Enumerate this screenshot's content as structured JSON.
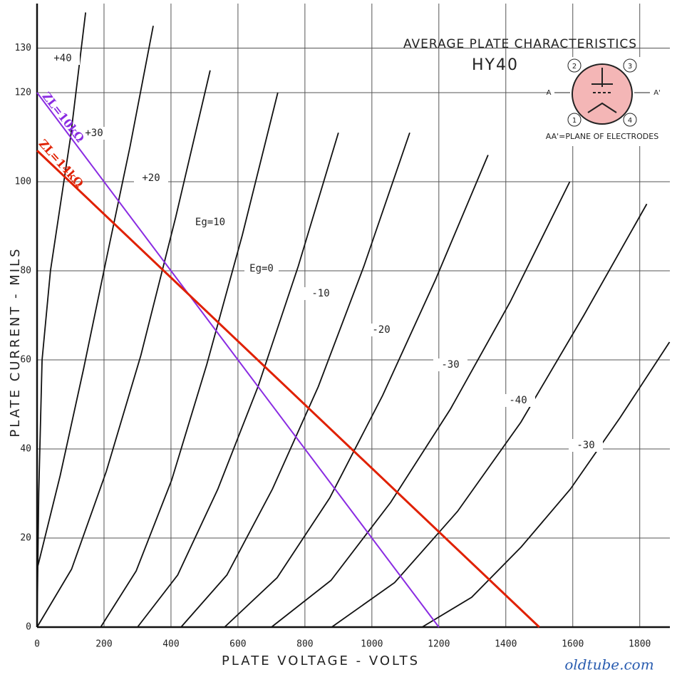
{
  "chart_data": {
    "type": "line",
    "title": "AVERAGE PLATE CHARACTERISTICS",
    "subtitle": "HY40",
    "x_label": "PLATE VOLTAGE - VOLTS",
    "y_label": "PLATE CURRENT - MILS",
    "watermark": "oldtube.com",
    "xlim": [
      0,
      1890
    ],
    "ylim": [
      0,
      140
    ],
    "xticks": [
      0,
      200,
      400,
      600,
      800,
      1000,
      1200,
      1400,
      1600,
      1800
    ],
    "yticks": [
      0,
      20,
      40,
      60,
      80,
      100,
      120,
      130
    ],
    "grid": true,
    "series": [
      {
        "name": "+40",
        "color": "#111111",
        "x": [
          0,
          5,
          15,
          40,
          70,
          100,
          145
        ],
        "values": [
          0,
          30,
          60,
          80,
          95,
          110,
          138
        ]
      },
      {
        "name": "+30",
        "color": "#111111",
        "x": [
          0,
          69,
          139,
          208,
          278,
          347
        ],
        "values": [
          13,
          34,
          58,
          83,
          108,
          135
        ]
      },
      {
        "name": "+20",
        "color": "#111111",
        "x": [
          0,
          103,
          207,
          310,
          414,
          517
        ],
        "values": [
          0,
          13,
          35,
          61,
          92,
          125
        ]
      },
      {
        "name": "Eg=10",
        "color": "#111111",
        "x": [
          190,
          296,
          402,
          507,
          613,
          719
        ],
        "values": [
          0,
          12.6,
          33,
          59,
          88,
          120
        ]
      },
      {
        "name": "Eg=0",
        "color": "#111111",
        "x": [
          300,
          420,
          540,
          660,
          780,
          900
        ],
        "values": [
          0,
          11.7,
          31,
          54,
          81,
          111
        ]
      },
      {
        "name": "-10",
        "color": "#111111",
        "x": [
          430,
          567,
          703,
          840,
          976,
          1113
        ],
        "values": [
          0,
          11.7,
          31,
          54,
          81,
          111
        ]
      },
      {
        "name": "-20",
        "color": "#111111",
        "x": [
          560,
          717,
          874,
          1032,
          1190,
          1347
        ],
        "values": [
          0,
          11.1,
          29,
          52,
          78,
          106
        ]
      },
      {
        "name": "-30",
        "color": "#111111",
        "x": [
          700,
          878,
          1056,
          1235,
          1413,
          1591
        ],
        "values": [
          0,
          10.5,
          28,
          49,
          73,
          100
        ]
      },
      {
        "name": "-40",
        "color": "#111111",
        "x": [
          880,
          1068,
          1256,
          1445,
          1633,
          1821
        ],
        "values": [
          0,
          10,
          26,
          46,
          70,
          95
        ]
      },
      {
        "name": "-30",
        "color": "#111111",
        "x": [
          1150,
          1298,
          1446,
          1593,
          1741,
          1889
        ],
        "values": [
          0,
          6.7,
          18,
          31,
          47,
          64
        ]
      }
    ],
    "load_lines": [
      {
        "name": "ZL=10kΩ",
        "color": "#8a2be2",
        "x": [
          0,
          1200
        ],
        "values": [
          120,
          0
        ]
      },
      {
        "name": "ZL=14kΩ",
        "color": "#e02000",
        "x": [
          0,
          1500
        ],
        "values": [
          107,
          0
        ]
      }
    ],
    "tube_diagram": {
      "caption": "AA'=PLANE OF ELECTRODES",
      "pins": [
        "1",
        "2",
        "3",
        "4"
      ],
      "left": "A",
      "right": "A'"
    }
  }
}
